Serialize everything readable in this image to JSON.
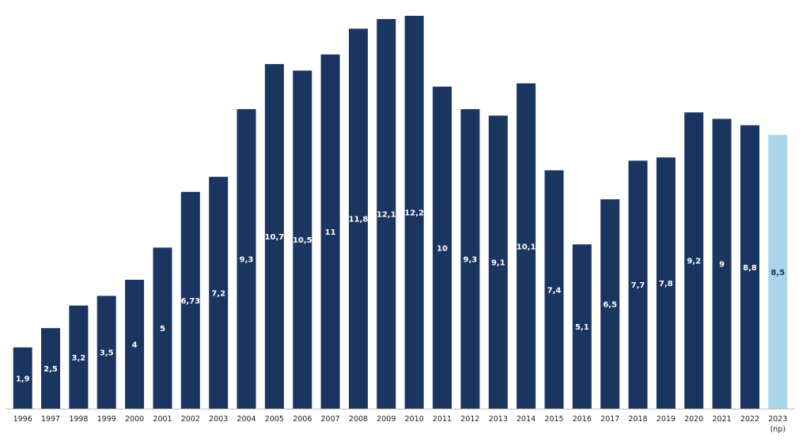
{
  "chart_data": {
    "type": "bar",
    "categories": [
      "1996",
      "1997",
      "1998",
      "1999",
      "2000",
      "2001",
      "2002",
      "2003",
      "2004",
      "2005",
      "2006",
      "2007",
      "2008",
      "2009",
      "2010",
      "2011",
      "2012",
      "2013",
      "2014",
      "2015",
      "2016",
      "2017",
      "2018",
      "2019",
      "2020",
      "2021",
      "2022",
      "2023"
    ],
    "category_sublabels": {
      "2023": "(np)"
    },
    "values": [
      1.9,
      2.5,
      3.2,
      3.5,
      4,
      5,
      6.73,
      7.2,
      9.3,
      10.7,
      10.5,
      11,
      11.8,
      12.1,
      12.2,
      10,
      9.3,
      9.1,
      10.1,
      7.4,
      5.1,
      6.5,
      7.7,
      7.8,
      9.2,
      9,
      8.8,
      8.5
    ],
    "data_labels": [
      "1,9",
      "2,5",
      "3,2",
      "3,5",
      "4",
      "5",
      "6,73",
      "7,2",
      "9,3",
      "10,7",
      "10,5",
      "11",
      "11,8",
      "12,1",
      "12,2",
      "10",
      "9,3",
      "9,1",
      "10,1",
      "7,4",
      "5,1",
      "6,5",
      "7,7",
      "7,8",
      "9,2",
      "9",
      "8,8",
      "8,5"
    ],
    "title": "",
    "xlabel": "",
    "ylabel": "",
    "ylim": [
      0,
      12.2
    ],
    "grid": false,
    "legend": "none",
    "colors": {
      "bar": "#1a3560",
      "highlight_bar": "#a9d4ea",
      "baseline": "#bfbfbf"
    },
    "highlight_categories": [
      "2023"
    ]
  }
}
